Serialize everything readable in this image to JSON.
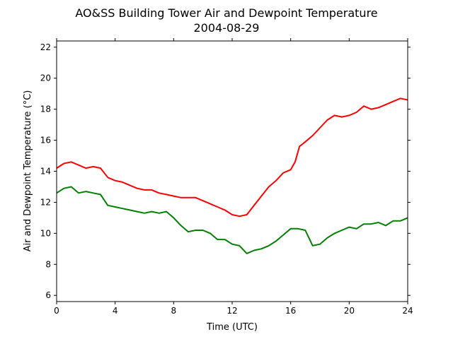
{
  "chart_data": {
    "type": "line",
    "title_line1": "AO&SS Building Tower Air and Dewpoint Temperature",
    "title_line2": "2004-08-29",
    "xlabel": "Time (UTC)",
    "ylabel": "Air and Dewpoint Temperature (°C)",
    "xlim": [
      0,
      24
    ],
    "ylim": [
      5.6,
      22.4
    ],
    "xticks": [
      0,
      4,
      8,
      12,
      16,
      20,
      24
    ],
    "yticks": [
      6,
      8,
      10,
      12,
      14,
      16,
      18,
      20,
      22
    ],
    "grid": false,
    "legend": "none",
    "series": [
      {
        "color": "#ff0000",
        "x": [
          0,
          0.5,
          1,
          1.5,
          2,
          2.5,
          3,
          3.5,
          4,
          4.5,
          5,
          5.5,
          6,
          6.5,
          7,
          7.5,
          8,
          8.5,
          9,
          9.5,
          10,
          10.5,
          11,
          11.5,
          12,
          12.5,
          13,
          13.5,
          14,
          14.5,
          15,
          15.5,
          16,
          16.3,
          16.6,
          17,
          17.5,
          18,
          18.5,
          19,
          19.5,
          20,
          20.5,
          21,
          21.5,
          22,
          22.5,
          23,
          23.5,
          24
        ],
        "values": [
          14.2,
          14.5,
          14.6,
          14.4,
          14.2,
          14.3,
          14.2,
          13.6,
          13.4,
          13.3,
          13.1,
          12.9,
          12.8,
          12.8,
          12.6,
          12.5,
          12.4,
          12.3,
          12.3,
          12.3,
          12.1,
          11.9,
          11.7,
          11.5,
          11.2,
          11.1,
          11.2,
          11.8,
          12.4,
          13.0,
          13.4,
          13.9,
          14.1,
          14.6,
          15.6,
          15.9,
          16.3,
          16.8,
          17.3,
          17.6,
          17.5,
          17.6,
          17.8,
          18.2,
          18.0,
          18.1,
          18.3,
          18.5,
          18.7,
          18.6
        ]
      },
      {
        "color": "#008000",
        "x": [
          0,
          0.5,
          1,
          1.5,
          2,
          2.5,
          3,
          3.5,
          4,
          4.5,
          5,
          5.5,
          6,
          6.5,
          7,
          7.5,
          8,
          8.5,
          9,
          9.5,
          10,
          10.5,
          11,
          11.5,
          12,
          12.5,
          13,
          13.5,
          14,
          14.5,
          15,
          15.5,
          16,
          16.5,
          17,
          17.5,
          18,
          18.5,
          19,
          19.5,
          20,
          20.5,
          21,
          21.5,
          22,
          22.5,
          23,
          23.5,
          24
        ],
        "values": [
          12.6,
          12.9,
          13.0,
          12.6,
          12.7,
          12.6,
          12.5,
          11.8,
          11.7,
          11.6,
          11.5,
          11.4,
          11.3,
          11.4,
          11.3,
          11.4,
          11.0,
          10.5,
          10.1,
          10.2,
          10.2,
          10.0,
          9.6,
          9.6,
          9.3,
          9.2,
          8.7,
          8.9,
          9.0,
          9.2,
          9.5,
          9.9,
          10.3,
          10.3,
          10.2,
          9.2,
          9.3,
          9.7,
          10.0,
          10.2,
          10.4,
          10.3,
          10.6,
          10.6,
          10.7,
          10.5,
          10.8,
          10.8,
          11.0
        ]
      }
    ]
  }
}
